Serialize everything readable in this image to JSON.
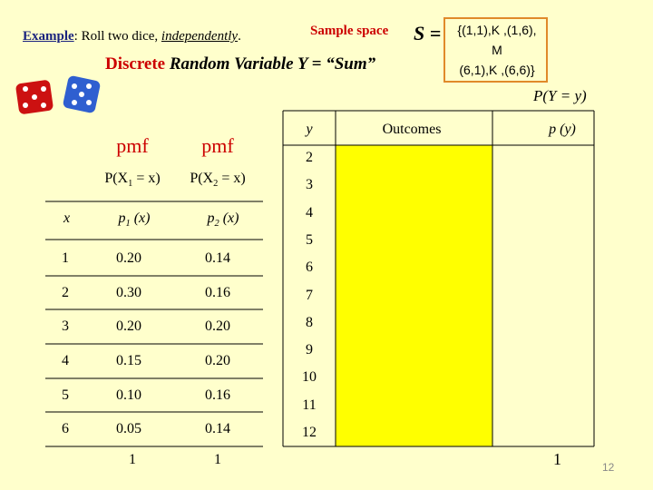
{
  "header": {
    "example_label": "Example",
    "example_text": ":  Roll two dice, ",
    "example_emph": "independently",
    "example_end": ".",
    "sample_space_label": "Sample space",
    "set_symbol": "S =",
    "set_lines": [
      "{(1,1),K ,(1,6),",
      "M",
      "(6,1),K ,(6,6)}"
    ]
  },
  "subtitle": {
    "discrete": "Discrete",
    "rest": "Random Variable  Y = “Sum”"
  },
  "left_table": {
    "pmf_labels": [
      "pmf",
      "pmf"
    ],
    "prob_labels": [
      {
        "prefix": "P(X",
        "sub": "1",
        "suffix": " = x)"
      },
      {
        "prefix": "P(X",
        "sub": "2",
        "suffix": " = x)"
      }
    ],
    "columns": [
      {
        "prefix": "x",
        "sub": "",
        "suffix": ""
      },
      {
        "prefix": "p",
        "sub": "1",
        "suffix": " (x)"
      },
      {
        "prefix": "p",
        "sub": "2",
        "suffix": " (x)"
      }
    ],
    "rows": [
      [
        "1",
        "0.20",
        "0.14"
      ],
      [
        "2",
        "0.30",
        "0.16"
      ],
      [
        "3",
        "0.20",
        "0.20"
      ],
      [
        "4",
        "0.15",
        "0.20"
      ],
      [
        "5",
        "0.10",
        "0.16"
      ],
      [
        "6",
        "0.05",
        "0.14"
      ]
    ],
    "totals": [
      "1",
      "1"
    ]
  },
  "right_table": {
    "caption": "P(Y = y)",
    "columns": [
      "y",
      "Outcomes",
      "p (y)"
    ],
    "y_values": [
      "2",
      "3",
      "4",
      "5",
      "6",
      "7",
      "8",
      "9",
      "10",
      "11",
      "12"
    ],
    "total": "1"
  },
  "page_number": "12"
}
